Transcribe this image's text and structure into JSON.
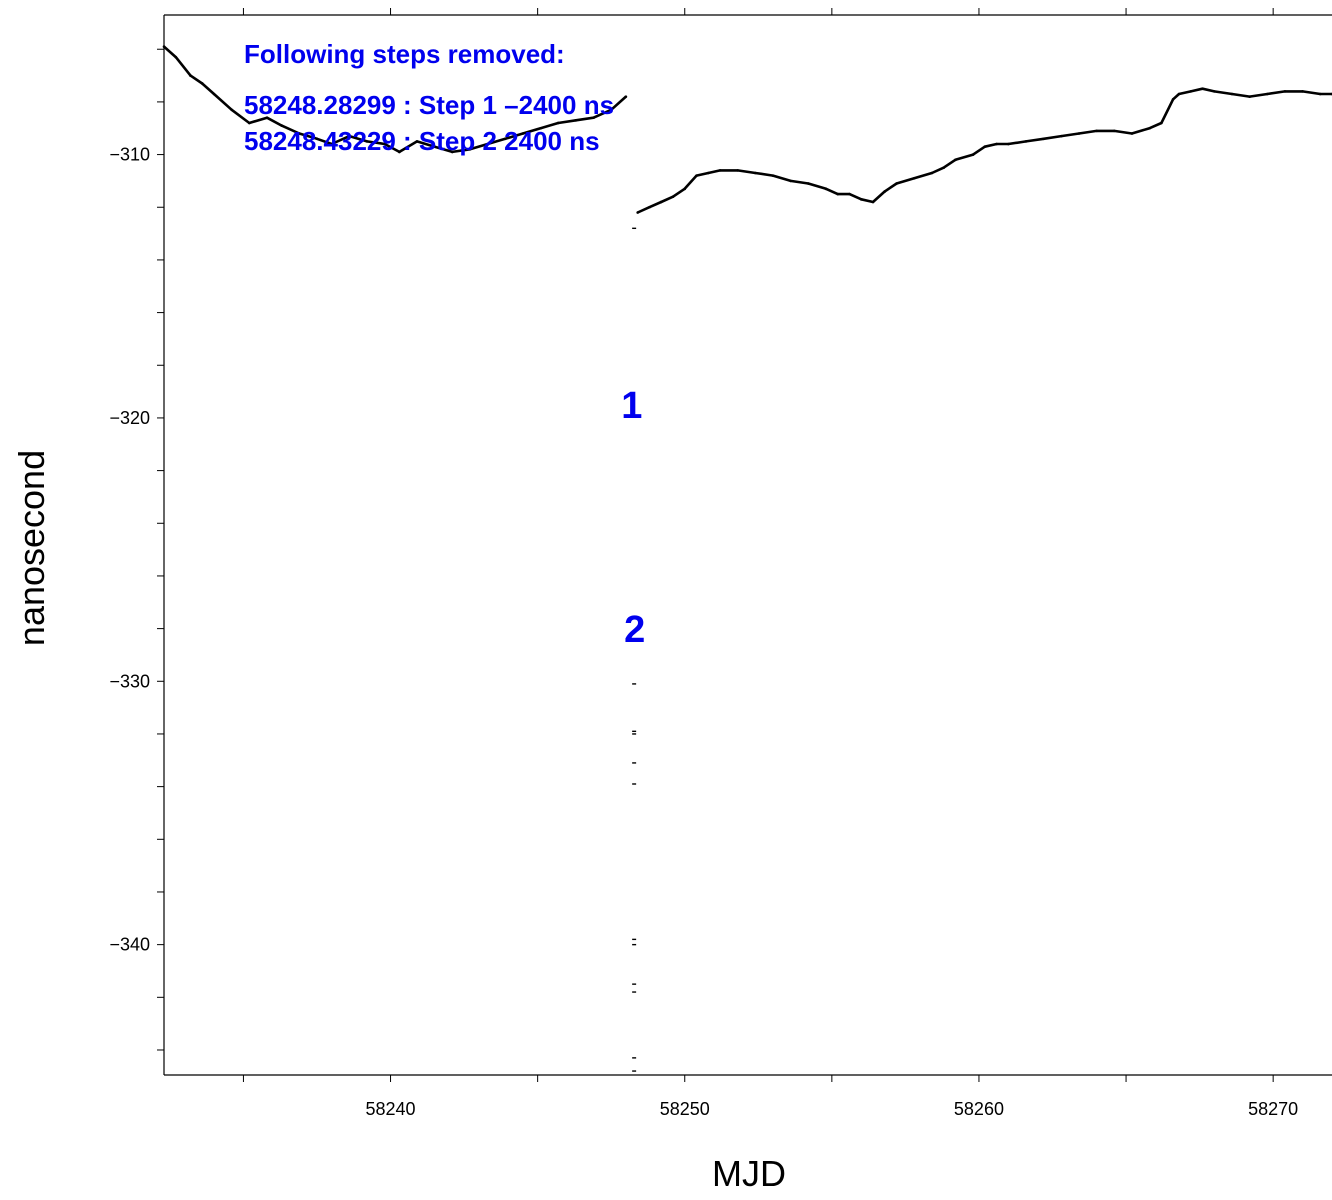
{
  "colors": {
    "annotation": "#0000ee",
    "data": "#000000",
    "axis": "#000000",
    "background": "#ffffff"
  },
  "chart_data": {
    "type": "scatter",
    "title": "",
    "xlabel": "MJD",
    "ylabel": "nanosecond",
    "xlim": [
      58232.3,
      58272.0
    ],
    "ylim": [
      -344.95,
      -304.7
    ],
    "grid": false,
    "legend": "none",
    "x_major_ticks": [
      58240,
      58250,
      58260,
      58270
    ],
    "x_tick_labels": [
      "58240",
      "58250",
      "58260",
      "58270"
    ],
    "x_minor_ticks": [
      58235,
      58245,
      58255,
      58265
    ],
    "y_major_ticks": [
      -310,
      -320,
      -330,
      -340
    ],
    "y_tick_labels": [
      "−310",
      "−320",
      "−330",
      "−340"
    ],
    "y_minor_ticks": [
      -306,
      -308,
      -312,
      -314,
      -316,
      -318,
      -322,
      -324,
      -326,
      -328,
      -332,
      -334,
      -336,
      -338,
      -342,
      -344
    ],
    "annotation_title": "Following steps removed:",
    "annotations": [
      "58248.28299 : Step 1 –2400 ns",
      "58248.43229 : Step 2 2400 ns"
    ],
    "step_markers": [
      {
        "label": "1",
        "x": 58248.2,
        "y": -320.0
      },
      {
        "label": "2",
        "x": 58248.3,
        "y": -328.5
      }
    ],
    "series": [
      {
        "x": [
          58232.3,
          58232.7,
          58233.2,
          58233.6,
          58234.0,
          58234.6,
          58235.2,
          58235.8,
          58236.3,
          58236.9,
          58237.5,
          58238.0,
          58238.6,
          58239.2,
          58239.8,
          58240.3,
          58240.9,
          58241.5,
          58242.1,
          58242.7,
          58243.3,
          58243.9,
          58244.5,
          58245.1,
          58245.7,
          58246.3,
          58246.9,
          58247.5,
          58248.0
        ],
        "y": [
          -305.9,
          -306.3,
          -307.0,
          -307.3,
          -307.7,
          -308.3,
          -308.8,
          -308.6,
          -308.9,
          -309.2,
          -309.4,
          -309.6,
          -309.3,
          -309.5,
          -309.6,
          -309.9,
          -309.5,
          -309.7,
          -309.9,
          -309.8,
          -309.6,
          -309.4,
          -309.2,
          -309.0,
          -308.8,
          -308.7,
          -308.6,
          -308.3,
          -307.8
        ]
      },
      {
        "x": [
          58248.4,
          58248.8,
          58249.2,
          58249.6,
          58250.0,
          58250.4,
          58250.8,
          58251.2,
          58251.8,
          58252.4,
          58253.0,
          58253.6,
          58254.2,
          58254.8,
          58255.2,
          58255.6,
          58256.0,
          58256.4,
          58256.8,
          58257.2,
          58257.8,
          58258.4,
          58258.8,
          58259.2,
          58259.8,
          58260.2,
          58260.6,
          58261.0,
          58261.6,
          58262.2,
          58262.8,
          58263.4,
          58264.0,
          58264.6,
          58265.2,
          58265.8,
          58266.2,
          58266.6,
          58266.8,
          58267.2,
          58267.6,
          58268.0,
          58268.6,
          58269.2,
          58269.8,
          58270.4,
          58271.0,
          58271.6,
          58272.0
        ],
        "y": [
          -312.2,
          -312.0,
          -311.8,
          -311.6,
          -311.3,
          -310.8,
          -310.7,
          -310.6,
          -310.6,
          -310.7,
          -310.8,
          -311.0,
          -311.1,
          -311.3,
          -311.5,
          -311.5,
          -311.7,
          -311.8,
          -311.4,
          -311.1,
          -310.9,
          -310.7,
          -310.5,
          -310.2,
          -310.0,
          -309.7,
          -309.6,
          -309.6,
          -309.5,
          -309.4,
          -309.3,
          -309.2,
          -309.1,
          -309.1,
          -309.2,
          -309.0,
          -308.8,
          -307.9,
          -307.7,
          -307.6,
          -307.5,
          -307.6,
          -307.7,
          -307.8,
          -307.7,
          -307.6,
          -307.6,
          -307.7,
          -307.7
        ]
      },
      {
        "x": [
          58248.28,
          58248.28,
          58248.28,
          58248.28,
          58248.28,
          58248.28,
          58248.28,
          58248.28,
          58248.28,
          58248.28,
          58248.28,
          58248.28
        ],
        "y": [
          -312.8,
          -330.1,
          -331.9,
          -332.0,
          -333.1,
          -333.9,
          -339.8,
          -340.0,
          -341.5,
          -341.8,
          -344.3,
          -344.8
        ]
      }
    ]
  }
}
